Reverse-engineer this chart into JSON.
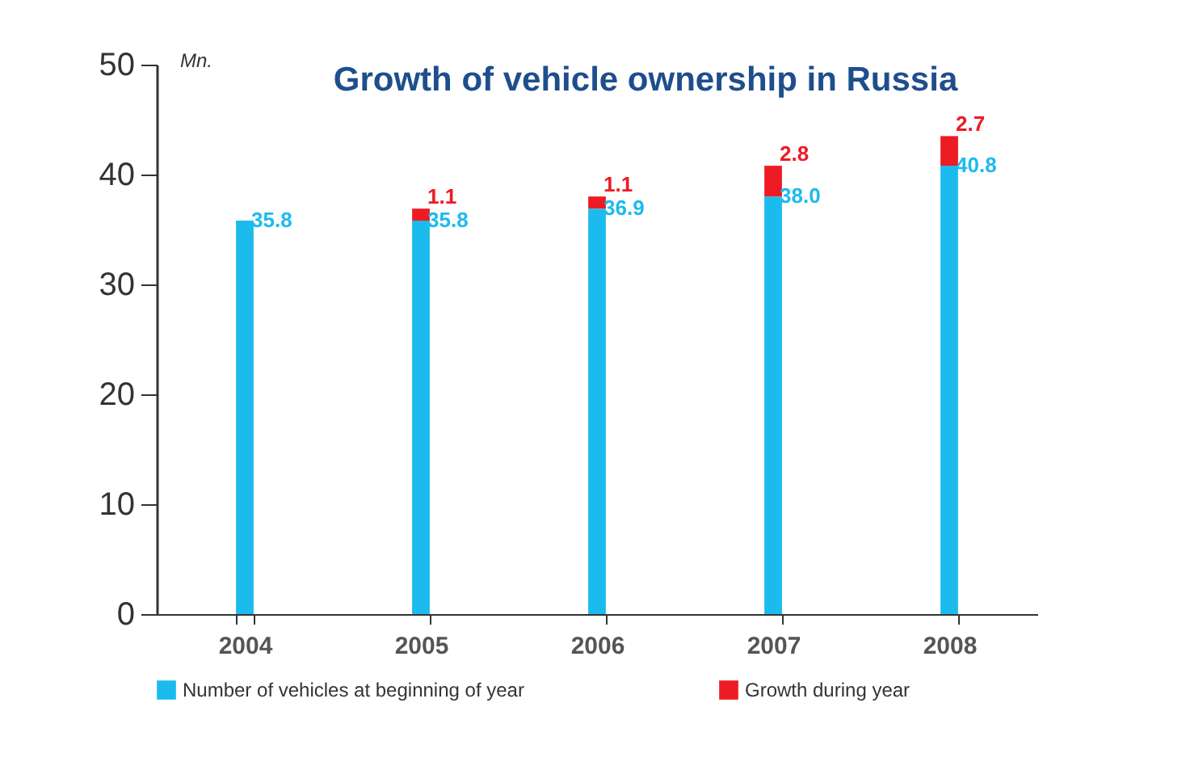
{
  "chart_data": {
    "type": "bar",
    "title": "Growth of vehicle ownership in Russia",
    "ylabel": "Mn.",
    "categories": [
      "2004",
      "2005",
      "2006",
      "2007",
      "2008"
    ],
    "stacked": true,
    "series": [
      {
        "name": "Number of vehicles at beginning of year",
        "color": "#1cbbed",
        "values": [
          35.8,
          35.8,
          36.9,
          38.0,
          40.8
        ],
        "value_labels": [
          "35.8",
          "35.8",
          "36.9",
          "38.0",
          "40.8"
        ]
      },
      {
        "name": "Growth during year",
        "color": "#ed1c24",
        "values": [
          null,
          1.1,
          1.1,
          2.8,
          2.7
        ],
        "value_labels": [
          null,
          "1.1",
          "1.1",
          "2.8",
          "2.7"
        ]
      }
    ],
    "ylim": [
      0,
      50
    ],
    "yticks": [
      0,
      10,
      20,
      30,
      40,
      50
    ],
    "grid": false,
    "legend": "bottom"
  }
}
